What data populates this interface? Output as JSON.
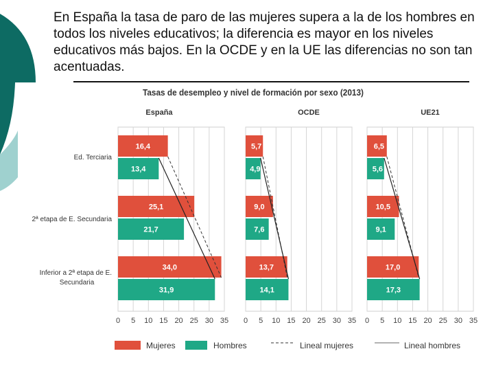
{
  "headline": "En España la tasa de paro de las mujeres supera a la de los hombres en todos los niveles educativos; la diferencia es mayor en los niveles educativos más bajos. En la OCDE y en la UE las diferencias no son tan acentuadas.",
  "colors": {
    "mujeres": "#e0503c",
    "hombres": "#1fa886",
    "deco_dark": "#0d6b63",
    "deco_light": "#9fd1cf"
  },
  "chart_data": {
    "type": "bar",
    "title": "Tasas de desempleo y nivel de formación por sexo (2013)",
    "categories": [
      "Ed. Terciaria",
      "2ª etapa de E. Secundaria",
      "Inferior a 2ª etapa de E. Secundaria"
    ],
    "xlim": [
      0,
      35
    ],
    "xticks": [
      "0",
      "5",
      "10",
      "15",
      "20",
      "25",
      "30",
      "35"
    ],
    "grid": true,
    "legend_position": "bottom",
    "panels": [
      {
        "name": "España",
        "series": [
          {
            "name": "Mujeres",
            "values": [
              16.4,
              25.1,
              34.0
            ],
            "labels": [
              "16,4",
              "25,1",
              "34,0"
            ]
          },
          {
            "name": "Hombres",
            "values": [
              13.4,
              21.7,
              31.9
            ],
            "labels": [
              "13,4",
              "21,7",
              "31,9"
            ]
          }
        ]
      },
      {
        "name": "OCDE",
        "series": [
          {
            "name": "Mujeres",
            "values": [
              5.7,
              9.0,
              13.7
            ],
            "labels": [
              "5,7",
              "9,0",
              "13,7"
            ]
          },
          {
            "name": "Hombres",
            "values": [
              4.9,
              7.6,
              14.1
            ],
            "labels": [
              "4,9",
              "7,6",
              "14,1"
            ]
          }
        ]
      },
      {
        "name": "UE21",
        "series": [
          {
            "name": "Mujeres",
            "values": [
              6.5,
              10.5,
              17.0
            ],
            "labels": [
              "6,5",
              "10,5",
              "17,0"
            ]
          },
          {
            "name": "Hombres",
            "values": [
              5.6,
              9.1,
              17.3
            ],
            "labels": [
              "5,6",
              "9,1",
              "17,3"
            ]
          }
        ]
      }
    ],
    "legend": [
      "Mujeres",
      "Hombres",
      "Lineal mujeres",
      "Lineal hombres"
    ]
  }
}
